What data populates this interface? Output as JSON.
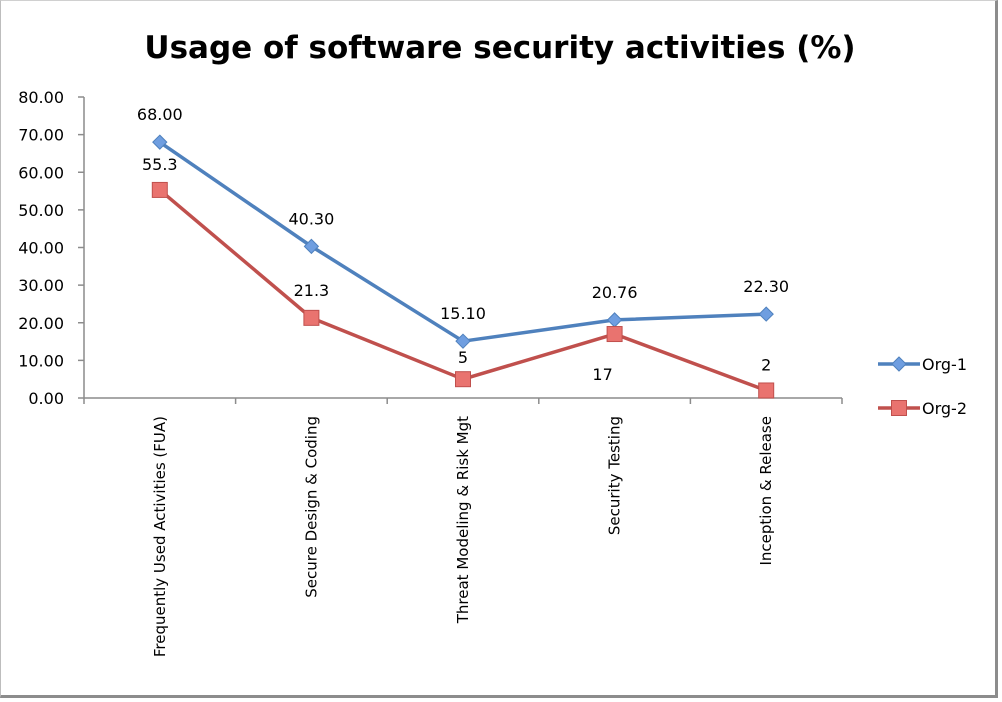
{
  "chart_data": {
    "type": "line",
    "title": "Usage of software security activities (%)",
    "xlabel": "",
    "ylabel": "",
    "ylim": [
      0,
      80
    ],
    "yticks": [
      "0.00",
      "10.00",
      "20.00",
      "30.00",
      "40.00",
      "50.00",
      "60.00",
      "70.00",
      "80.00"
    ],
    "grid": false,
    "legend_position": "right",
    "categories": [
      "Frequently Used Activities (FUA)",
      "Secure Design & Coding",
      "Threat Modeling & Risk Mgt",
      "Security Testing",
      "Inception & Release"
    ],
    "series": [
      {
        "name": "Org-1",
        "color": "#4f81bd",
        "marker": "diamond",
        "values": [
          68.0,
          40.3,
          15.1,
          20.76,
          22.3
        ],
        "labels": [
          "68.00",
          "40.30",
          "15.10",
          "20.76",
          "22.30"
        ]
      },
      {
        "name": "Org-2",
        "color": "#c0504d",
        "marker_fill": "#e9736f",
        "marker": "square",
        "values": [
          55.3,
          21.3,
          5,
          17,
          2
        ],
        "labels": [
          "55.3",
          "21.3",
          "5",
          "17",
          "2"
        ]
      }
    ]
  }
}
